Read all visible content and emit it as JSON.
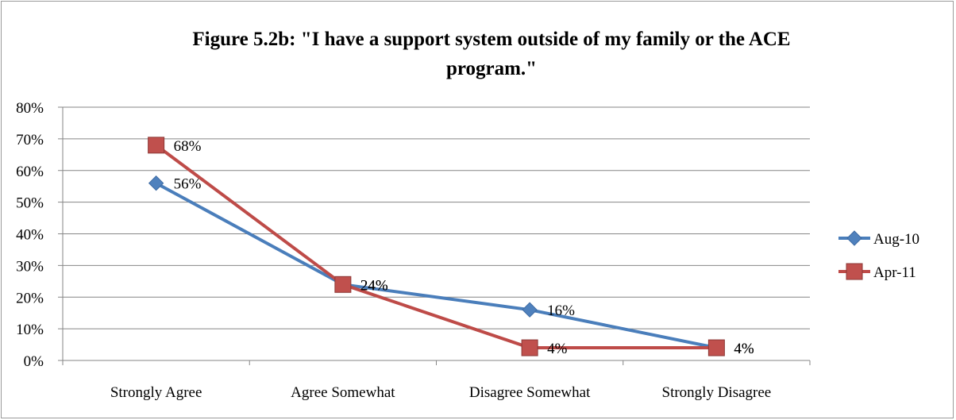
{
  "colors": {
    "aug10": "#4a7ebb",
    "aug10_marker": "#4f81bd",
    "apr11": "#be4b48",
    "apr11_marker": "#c0504d",
    "grid": "#868686"
  },
  "chart_data": {
    "type": "line",
    "title_lines": [
      "Figure 5.2b: \"I have a support system outside of my family or the ACE",
      "program.\""
    ],
    "xlabel": "",
    "ylabel": "",
    "categories": [
      "Strongly Agree",
      "Agree Somewhat",
      "Disagree Somewhat",
      "Strongly Disagree"
    ],
    "ylim": [
      0,
      80
    ],
    "yticks": [
      0,
      10,
      20,
      30,
      40,
      50,
      60,
      70,
      80
    ],
    "ytick_labels": [
      "0%",
      "10%",
      "20%",
      "30%",
      "40%",
      "50%",
      "60%",
      "70%",
      "80%"
    ],
    "grid": true,
    "legend_position": "right",
    "series": [
      {
        "name": "Aug-10",
        "marker": "diamond",
        "values": [
          56,
          24,
          16,
          4
        ],
        "labels": [
          "56%",
          "24%",
          "16%",
          "4%"
        ]
      },
      {
        "name": "Apr-11",
        "marker": "square",
        "values": [
          68,
          24,
          4,
          4
        ],
        "labels": [
          "68%",
          "24%",
          "4%",
          "4%"
        ]
      }
    ]
  }
}
